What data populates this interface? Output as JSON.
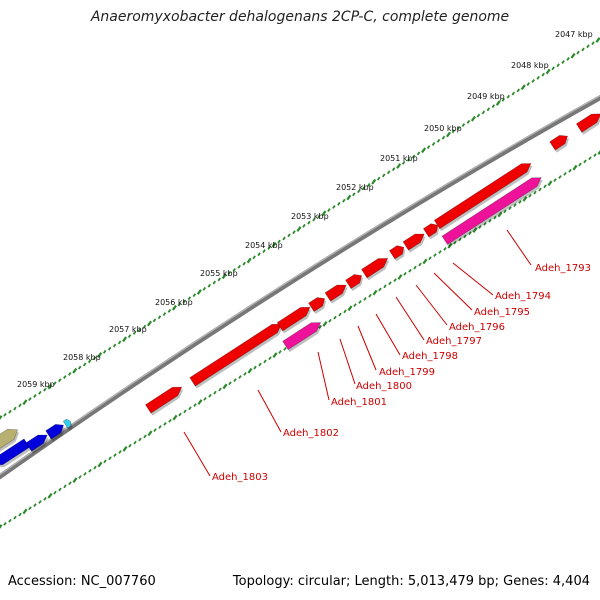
{
  "title": "Anaeromyxobacter dehalogenans 2CP-C, complete genome",
  "footer": {
    "accession": "Accession: NC_007760",
    "summary": "Topology: circular; Length: 5,013,479 bp; Genes: 4,404"
  },
  "ticks": [
    "2047 kbp",
    "2048 kbp",
    "2049 kbp",
    "2050 kbp",
    "2051 kbp",
    "2052 kbp",
    "2053 kbp",
    "2054 kbp",
    "2055 kbp",
    "2056 kbp",
    "2057 kbp",
    "2058 kbp",
    "2059 kbp"
  ],
  "genes": [
    "Adeh_1793",
    "Adeh_1794",
    "Adeh_1795",
    "Adeh_1796",
    "Adeh_1797",
    "Adeh_1798",
    "Adeh_1799",
    "Adeh_1800",
    "Adeh_1801",
    "Adeh_1802",
    "Adeh_1803"
  ],
  "colors": {
    "backbone": "#777777",
    "gene_forward": "#ee0000",
    "gene_rna": "#ee1199",
    "gene_blue": "#0000dd",
    "gene_olive": "#b7b070",
    "gene_cyan": "#33ccee",
    "tick_dots": "#2a8a2a",
    "label": "#cc0000"
  }
}
